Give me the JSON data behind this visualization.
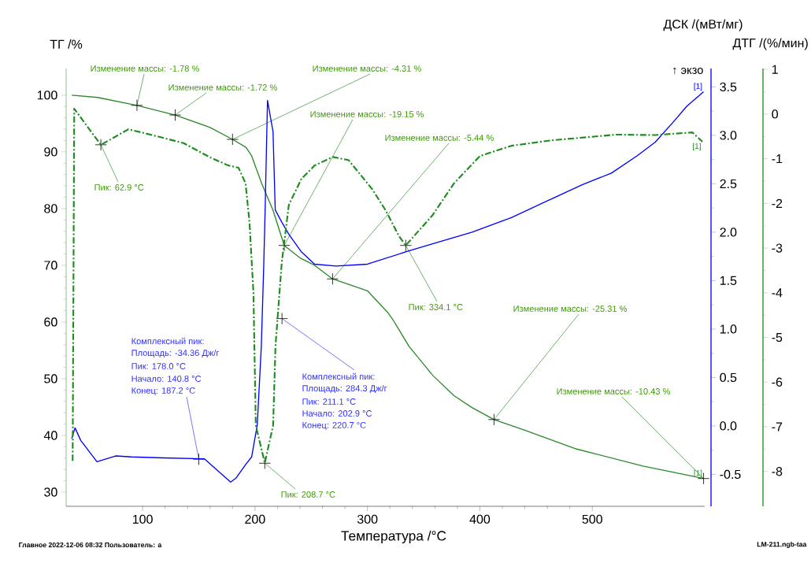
{
  "chart_data": {
    "type": "line",
    "xlabel": "Температура /°C",
    "ylabel": "ТГ /%",
    "y2label": "ДСК /(мВт/мг)",
    "y3label": "ДТГ /(%/мин)",
    "xlim": [
      32,
      600
    ],
    "xticks": [
      100,
      200,
      300,
      400,
      500
    ],
    "ylim": [
      27.5,
      104.7
    ],
    "yticks": [
      30,
      40,
      50,
      60,
      70,
      80,
      90,
      100
    ],
    "y2lim": [
      -0.83,
      3.69
    ],
    "y2ticks": [
      {
        "value": -0.5,
        "label": "-0.5"
      },
      {
        "value": 0,
        "label": "0.0"
      },
      {
        "value": 0.5,
        "label": "0.5"
      },
      {
        "value": 1,
        "label": "1.0"
      },
      {
        "value": 1.5,
        "label": "1.5"
      },
      {
        "value": 2,
        "label": "2.0"
      },
      {
        "value": 2.5,
        "label": "2.5"
      },
      {
        "value": 3,
        "label": "3.0"
      },
      {
        "value": 3.5,
        "label": "3.5"
      }
    ],
    "y3lim": [
      -8.78,
      1.02
    ],
    "y3ticks": [
      -8,
      -7,
      -6,
      -5,
      -4,
      -3,
      -2,
      -1,
      0,
      1
    ],
    "legend": false,
    "grid": false,
    "marker": "none",
    "series": [
      {
        "name": "[1]",
        "color": "#2a8a2a",
        "line_style": "solid",
        "x": [
          37,
          60,
          95,
          129,
          160,
          180,
          192,
          197,
          206,
          216,
          226,
          240,
          253,
          269,
          300,
          318,
          323,
          337,
          358,
          377,
          393,
          412.6,
          440,
          486,
          545,
          599
        ],
        "values": [
          100,
          99.6,
          98.2,
          96.5,
          94.3,
          92.2,
          90.8,
          89.3,
          84.4,
          79.7,
          73.5,
          71.3,
          70,
          67.6,
          65.5,
          61.7,
          60.3,
          55.7,
          50.6,
          47,
          44.9,
          42.8,
          40.9,
          37.6,
          34.6,
          32.4
        ]
      },
      {
        "name": "[1]",
        "color": "#0000ff",
        "axis": "y2",
        "line_style": "solid",
        "x": [
          37,
          39.9,
          45,
          59.4,
          76,
          90,
          118,
          155,
          178.3,
          183,
          191.6,
          197,
          202,
          205.6,
          207.7,
          209,
          211.1,
          216,
          218,
          224,
          230,
          241,
          253,
          272,
          300,
          335,
          358,
          393,
          428,
          463,
          491,
          517,
          540,
          556,
          573,
          584,
          599
        ],
        "values": [
          -0.13,
          -0.02,
          -0.15,
          -0.37,
          -0.31,
          -0.32,
          -0.33,
          -0.34,
          -0.58,
          -0.54,
          -0.4,
          -0.32,
          0.01,
          0.82,
          1.63,
          2.23,
          3.36,
          3.04,
          2.23,
          2.1,
          1.98,
          1.8,
          1.67,
          1.65,
          1.67,
          1.8,
          1.88,
          2,
          2.15,
          2.34,
          2.49,
          2.61,
          2.79,
          2.93,
          3.15,
          3.3,
          3.45
        ]
      },
      {
        "name": "[1]",
        "color": "#1e8c1e",
        "axis": "y3",
        "line_style": "dashdot",
        "x": [
          37.8,
          39.2,
          50.3,
          62.9,
          87.4,
          113.3,
          136.4,
          160.1,
          176.2,
          185.3,
          191.6,
          195.1,
          198.6,
          200.7,
          208.7,
          216.1,
          218.2,
          223.8,
          230.1,
          241.3,
          253.1,
          269.2,
          283.2,
          304.2,
          316.1,
          328,
          334.1,
          358,
          377,
          400,
          428,
          463,
          521,
          556,
          589,
          598
        ],
        "values": [
          -7.76,
          0.12,
          -0.26,
          -0.69,
          -0.34,
          -0.5,
          -0.65,
          -0.97,
          -1.15,
          -1.2,
          -1.55,
          -2.43,
          -4,
          -6.97,
          -7.81,
          -6.97,
          -5.2,
          -3.32,
          -2.03,
          -1.45,
          -1.15,
          -0.96,
          -1.03,
          -1.68,
          -2.15,
          -2.73,
          -2.94,
          -2.26,
          -1.55,
          -0.94,
          -0.71,
          -0.59,
          -0.46,
          -0.47,
          -0.41,
          -0.62
        ]
      }
    ],
    "annotations": [
      {
        "text": "Изменение массы: -1.78 %",
        "x": 95,
        "y": 98.2
      },
      {
        "text": "Изменение массы: -1.72 %",
        "x": 129,
        "y": 96.5
      },
      {
        "text": "Изменение массы: -4.31 %",
        "x": 180,
        "y": 92.2
      },
      {
        "text": "Изменение массы: -19.15 %",
        "x": 226,
        "y": 73.5
      },
      {
        "text": "Изменение массы: -5.44 %",
        "x": 269,
        "y": 67.6
      },
      {
        "text": "Пик: 62.9 °C",
        "x": 62.9,
        "y": 91.25
      },
      {
        "text": "Пик: 208.7 °C",
        "x": 208.7,
        "y": 35.1
      },
      {
        "text": "Пик: 334.1 °C",
        "x": 334.1,
        "y": 73.5
      },
      {
        "text": "Изменение массы: -25.31 %",
        "x": 412.6,
        "y": 42.8
      },
      {
        "text": "Изменение массы: -10.43 %",
        "x": 599,
        "y": 32.4
      },
      "Комплексный пик:",
      "Площадь:  -34.36 Дж/г",
      "Пик:  178.0 °C",
      "Начало:  140.8 °C",
      {
        "text": "Конец:  187.2 °C",
        "x": 150,
        "y": 35.8
      },
      {
        "text": "Комплексный пик:",
        "x": 224,
        "y": 60.6
      },
      "Площадь:  284.3 Дж/г",
      "Пик:  211.1 °C",
      "Начало:  202.9 °C",
      "Конец:  220.7 °C",
      "↑ экзо",
      "Главное   2022-12-06 08:32   Пользователь: a",
      "LM-211.ngb-taa"
    ]
  }
}
